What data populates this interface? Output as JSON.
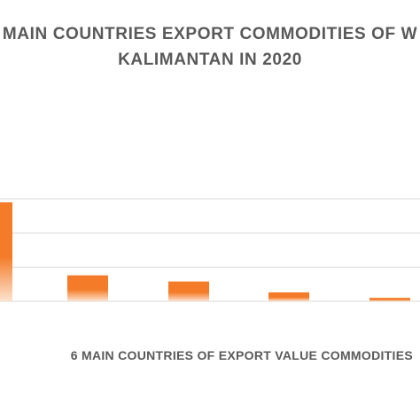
{
  "chart_data": {
    "type": "bar",
    "title_lines": [
      "MAIN COUNTRIES EXPORT COMMODITIES OF W",
      "KALIMANTAN IN 2020"
    ],
    "xlabel": "6 MAIN COUNTRIES OF EXPORT VALUE COMMODITIES",
    "ylabel": "",
    "categories": [
      "",
      "",
      "",
      "",
      ""
    ],
    "values": [
      145,
      38,
      29,
      13,
      5
    ],
    "ylim": [
      0,
      200
    ],
    "gridlines": [
      0,
      50,
      100,
      150
    ],
    "grid": true,
    "legend": "none",
    "colors": {
      "bar_top": "#F47B28",
      "bar_bottom": "#FCE3CF",
      "grid": "#D9D9D9",
      "text": "#595959"
    }
  }
}
